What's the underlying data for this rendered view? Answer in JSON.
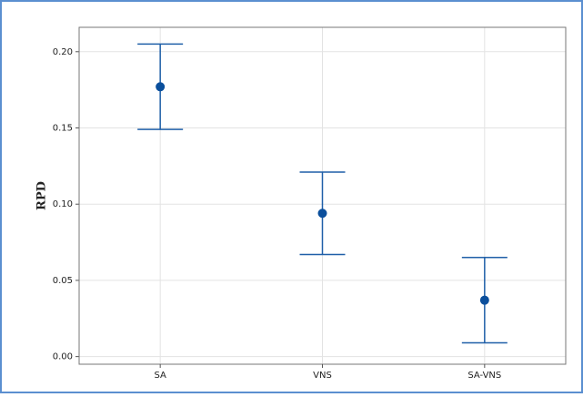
{
  "chart_data": {
    "type": "interval",
    "y_label": "RPD",
    "categories": [
      "SA",
      "VNS",
      "SA-VNS"
    ],
    "values": [
      0.177,
      0.094,
      0.037
    ],
    "errors": [
      0.028,
      0.027,
      0.028
    ],
    "color": "#1f5fa8",
    "ylim": [
      -0.005,
      0.216
    ],
    "yticks": [
      {
        "value": 0,
        "label": "0.00"
      },
      0.05,
      {
        "value": 0.1,
        "label": "0.10"
      },
      0.15,
      {
        "value": 0.2,
        "label": "0.20"
      }
    ],
    "grid": true
  }
}
